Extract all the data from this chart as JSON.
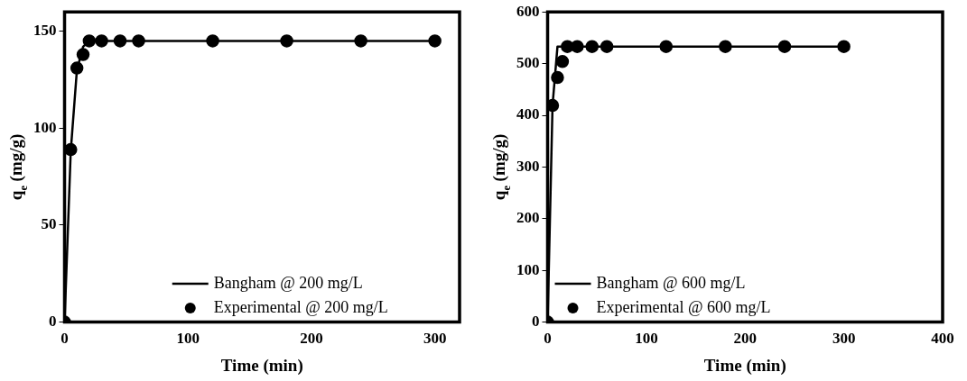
{
  "chart_data": [
    {
      "type": "line",
      "xlabel": "Time (min)",
      "ylabel": "q$_{e}$ (mg/g)",
      "xlim": [
        0,
        320
      ],
      "xticks": [
        0,
        100,
        200,
        300
      ],
      "ylim": [
        0,
        160
      ],
      "yticks": [
        0,
        50,
        100,
        150
      ],
      "grid": false,
      "legend": "bottom",
      "series": [
        {
          "name": "Bangham @ 200 mg/L",
          "type": "line",
          "marker": "none",
          "line_style": "solid",
          "color": "#000000",
          "x": [
            0,
            5,
            10,
            15,
            20,
            30,
            45,
            60,
            120,
            180,
            240,
            300
          ],
          "values": [
            0,
            88,
            130,
            142,
            145,
            145,
            145,
            145,
            145,
            145,
            145,
            145
          ]
        },
        {
          "name": "Experimental @ 200 mg/L",
          "type": "scatter",
          "marker": "circle",
          "color": "#000000",
          "x": [
            0,
            5,
            10,
            15,
            20,
            30,
            45,
            60,
            120,
            180,
            240,
            300
          ],
          "values": [
            0,
            89,
            131,
            138,
            145,
            145,
            145,
            145,
            145,
            145,
            145,
            145
          ]
        }
      ]
    },
    {
      "type": "line",
      "xlabel": "Time (min)",
      "ylabel": "q$_{e}$ (mg/g)",
      "xlim": [
        0,
        400
      ],
      "xticks": [
        0,
        100,
        200,
        300,
        400
      ],
      "ylim": [
        0,
        600
      ],
      "yticks": [
        0,
        100,
        200,
        300,
        400,
        500,
        600
      ],
      "grid": false,
      "legend": "bottom left",
      "series": [
        {
          "name": "Bangham @ 600 mg/L",
          "type": "line",
          "marker": "none",
          "line_style": "solid",
          "color": "#000000",
          "x": [
            0,
            5,
            10,
            15,
            20,
            30,
            45,
            60,
            120,
            180,
            240,
            300
          ],
          "values": [
            0,
            420,
            533,
            533,
            533,
            533,
            533,
            533,
            533,
            533,
            533,
            533
          ]
        },
        {
          "name": "Experimental @ 600 mg/L",
          "type": "scatter",
          "marker": "circle",
          "color": "#000000",
          "x": [
            0,
            5,
            10,
            15,
            20,
            30,
            45,
            60,
            120,
            180,
            240,
            300
          ],
          "values": [
            0,
            419,
            473,
            504,
            533,
            533,
            533,
            533,
            533,
            533,
            533,
            533
          ]
        }
      ]
    }
  ]
}
